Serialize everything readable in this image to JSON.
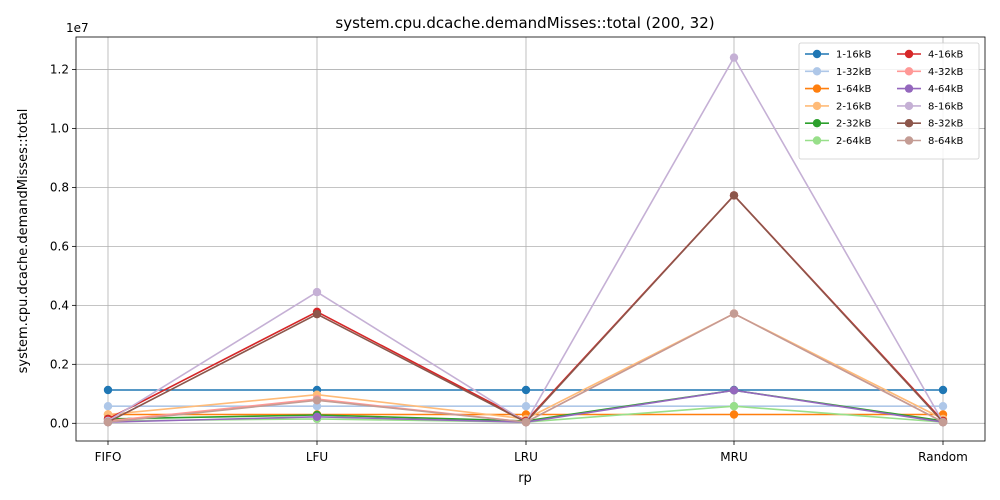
{
  "chart_data": {
    "type": "line",
    "title": "system.cpu.dcache.demandMisses::total (200, 32)",
    "xlabel": "rp",
    "ylabel": "system.cpu.dcache.demandMisses::total",
    "offset_label": "1e7",
    "categories": [
      "FIFO",
      "LFU",
      "LRU",
      "MRU",
      "Random"
    ],
    "ylim": [
      -0.06,
      1.31
    ],
    "yticks": [
      0.0,
      0.2,
      0.4,
      0.6,
      0.8,
      1.0,
      1.2
    ],
    "ytick_labels": [
      "0.0",
      "0.2",
      "0.4",
      "0.6",
      "0.8",
      "1.0",
      "1.2"
    ],
    "grid": true,
    "legend_position": "top-right",
    "series": [
      {
        "name": "1-16kB",
        "color": "#1f77b4",
        "values": [
          0.113,
          0.113,
          0.113,
          0.113,
          0.113
        ]
      },
      {
        "name": "1-32kB",
        "color": "#aec7e8",
        "values": [
          0.058,
          0.058,
          0.058,
          0.058,
          0.058
        ]
      },
      {
        "name": "1-64kB",
        "color": "#ff7f0e",
        "values": [
          0.03,
          0.03,
          0.03,
          0.03,
          0.03
        ]
      },
      {
        "name": "2-16kB",
        "color": "#ffbb78",
        "values": [
          0.03,
          0.097,
          0.015,
          0.372,
          0.015
        ]
      },
      {
        "name": "2-32kB",
        "color": "#2ca02c",
        "values": [
          0.015,
          0.028,
          0.008,
          0.112,
          0.008
        ]
      },
      {
        "name": "2-64kB",
        "color": "#98df8a",
        "values": [
          0.008,
          0.015,
          0.004,
          0.058,
          0.004
        ]
      },
      {
        "name": "4-16kB",
        "color": "#d62728",
        "values": [
          0.015,
          0.378,
          0.008,
          0.773,
          0.008
        ]
      },
      {
        "name": "4-32kB",
        "color": "#ff9896",
        "values": [
          0.008,
          0.082,
          0.004,
          0.372,
          0.004
        ]
      },
      {
        "name": "4-64kB",
        "color": "#9467bd",
        "values": [
          0.004,
          0.022,
          0.004,
          0.112,
          0.004
        ]
      },
      {
        "name": "8-16kB",
        "color": "#c5b0d5",
        "values": [
          0.008,
          0.445,
          0.004,
          1.24,
          0.004
        ]
      },
      {
        "name": "8-32kB",
        "color": "#8c564b",
        "values": [
          0.004,
          0.37,
          0.004,
          0.773,
          0.004
        ]
      },
      {
        "name": "8-64kB",
        "color": "#c49c94",
        "values": [
          0.004,
          0.078,
          0.004,
          0.372,
          0.004
        ]
      }
    ]
  }
}
